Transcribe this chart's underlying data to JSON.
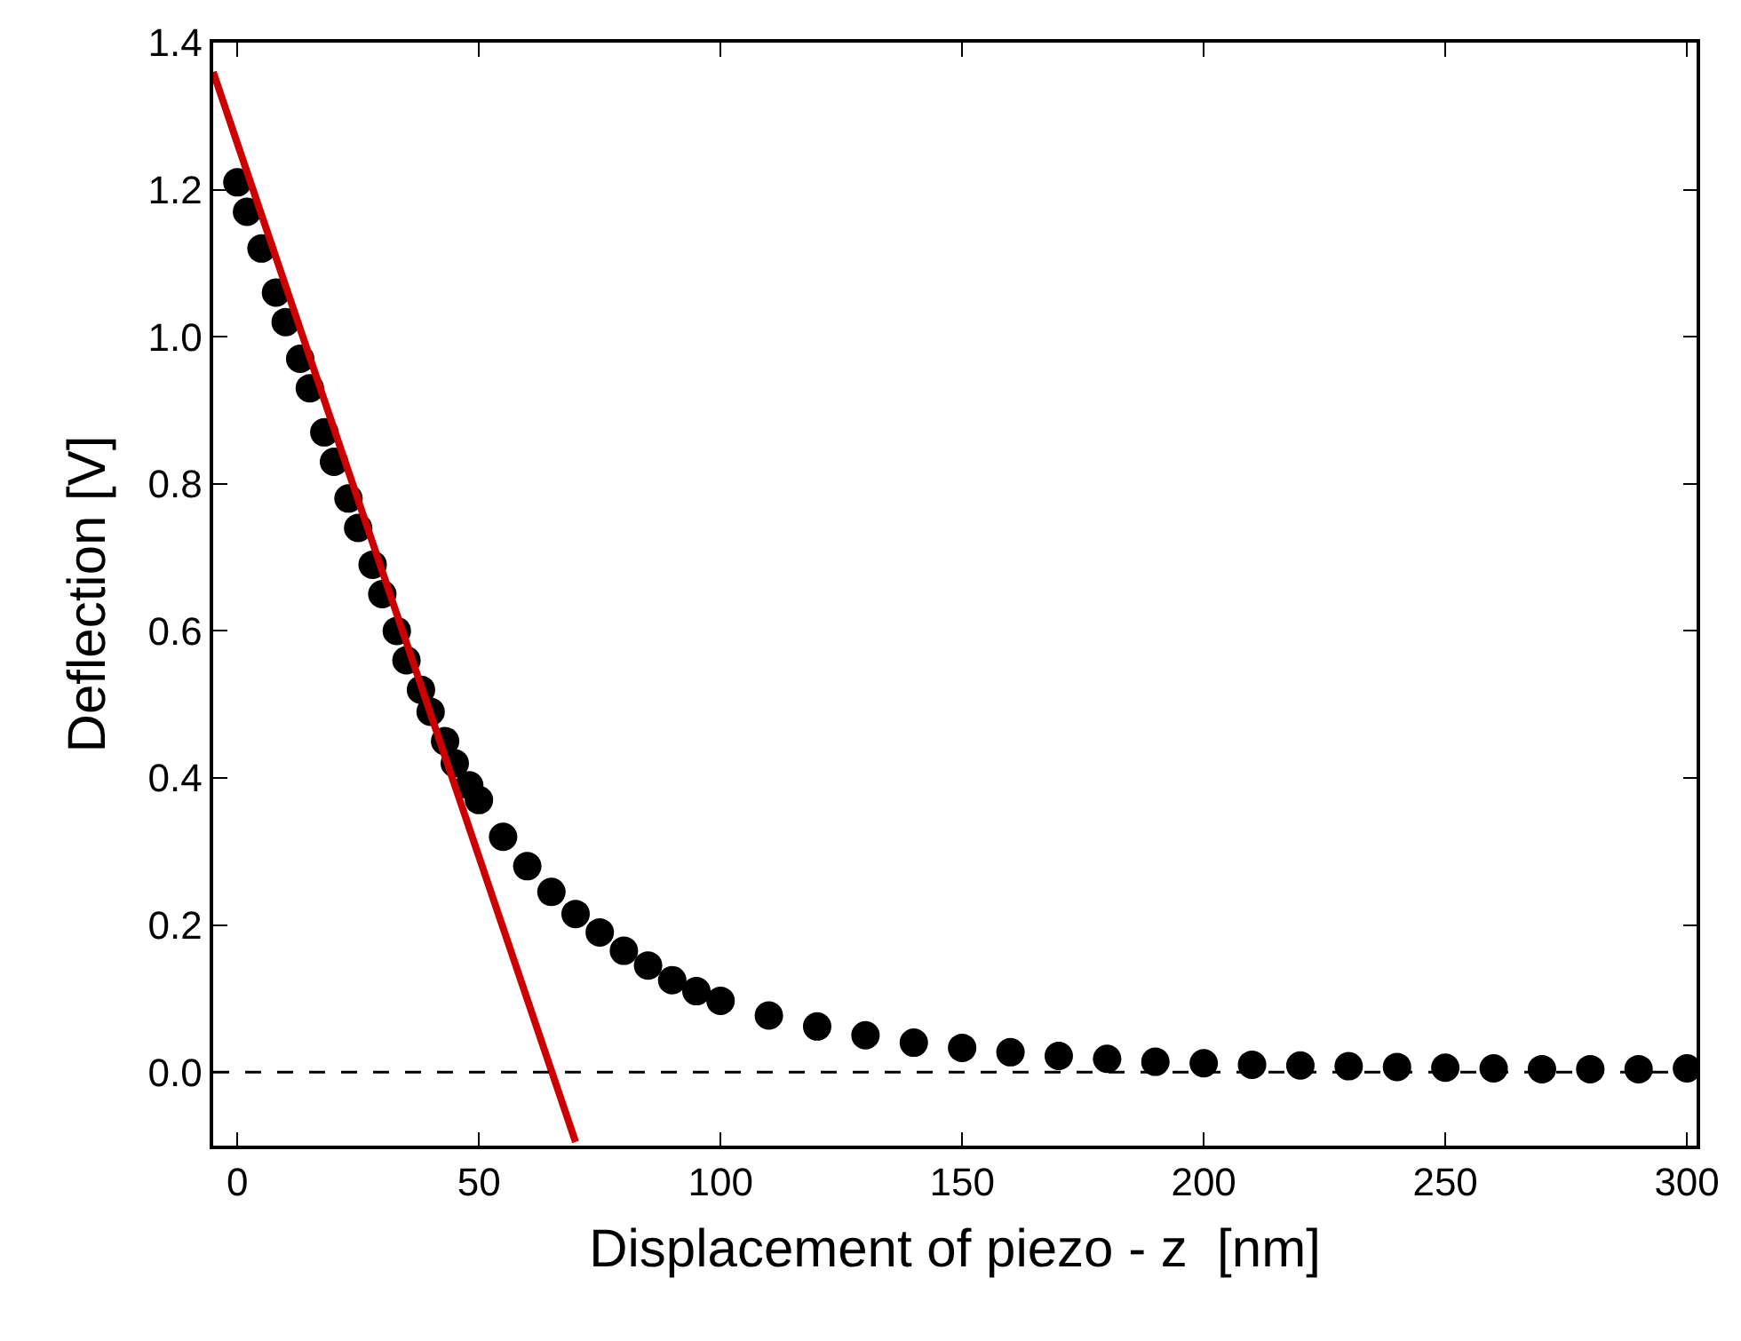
{
  "chart_data": {
    "type": "scatter",
    "xlabel": "Displacement of piezo - z  [nm]",
    "ylabel": "Deflection [V]",
    "xlim": [
      -5,
      302
    ],
    "ylim": [
      -0.1,
      1.4
    ],
    "xticks": [
      0,
      50,
      100,
      150,
      200,
      250,
      300
    ],
    "yticks": [
      {
        "value": 0,
        "label": "0.0"
      },
      {
        "value": 0.2,
        "label": "0.2"
      },
      {
        "value": 0.4,
        "label": "0.4"
      },
      {
        "value": 0.6,
        "label": "0.6"
      },
      {
        "value": 0.8,
        "label": "0.8"
      },
      {
        "value": 1.0,
        "label": "1.0"
      },
      {
        "value": 1.2,
        "label": "1.2"
      },
      {
        "value": 1.4,
        "label": "1.4"
      }
    ],
    "marker": "circle",
    "ref_lines": [
      {
        "axis": "y",
        "value": 0,
        "color": "#000000",
        "line_style": "dashed"
      }
    ],
    "series": [
      {
        "color": "#000000",
        "x": [
          0,
          2,
          5,
          8,
          10,
          13,
          15,
          18,
          20,
          23,
          25,
          28,
          30,
          33,
          35,
          38,
          40,
          43,
          45,
          48,
          50,
          55,
          60,
          65,
          70,
          75,
          80,
          85,
          90,
          95,
          100,
          110,
          120,
          130,
          140,
          150,
          160,
          170,
          180,
          190,
          200,
          210,
          220,
          230,
          240,
          250,
          260,
          270,
          280,
          290,
          300
        ],
        "values": [
          1.21,
          1.17,
          1.12,
          1.06,
          1.02,
          0.97,
          0.93,
          0.87,
          0.83,
          0.78,
          0.74,
          0.69,
          0.65,
          0.6,
          0.56,
          0.52,
          0.49,
          0.45,
          0.42,
          0.39,
          0.37,
          0.32,
          0.28,
          0.245,
          0.215,
          0.19,
          0.165,
          0.145,
          0.125,
          0.11,
          0.097,
          0.077,
          0.062,
          0.05,
          0.04,
          0.033,
          0.027,
          0.022,
          0.018,
          0.014,
          0.012,
          0.01,
          0.009,
          0.008,
          0.007,
          0.006,
          0.005,
          0.004,
          0.004,
          0.004,
          0.005
        ]
      },
      {
        "type": "line",
        "color": "#cc0000",
        "marker": "none",
        "x": [
          -5,
          70
        ],
        "values": [
          1.36,
          -0.095
        ]
      }
    ]
  }
}
